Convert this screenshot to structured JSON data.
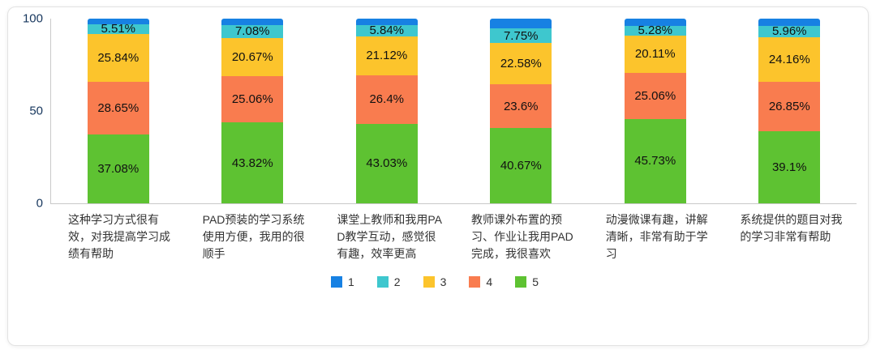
{
  "chart_data": {
    "type": "bar",
    "stacked": true,
    "percent": true,
    "title": "",
    "xlabel": "",
    "ylabel": "",
    "ylim": [
      0,
      100
    ],
    "grid": false,
    "legend_position": "bottom",
    "yticks": [
      {
        "label": "100",
        "value": 100
      },
      {
        "label": "50",
        "value": 50
      },
      {
        "label": "0",
        "value": 0
      }
    ],
    "categories": [
      "这种学习方式很有效，对我提高学习成绩有帮助",
      "PAD预装的学习系统使用方便，我用的很顺手",
      "课堂上教师和我用PAD教学互动，感觉很有趣，效率更高",
      "教师课外布置的预习、作业让我用PAD完成，我很喜欢",
      "动漫微课有趣，讲解清晰，非常有助于学习",
      "系统提供的题目对我的学习非常有帮助"
    ],
    "series": [
      {
        "name": "1",
        "color": "#1781e3",
        "values": [
          2.92,
          3.37,
          3.61,
          5.4,
          3.82,
          3.93
        ],
        "labels": [
          "",
          "",
          "",
          "",
          "",
          ""
        ]
      },
      {
        "name": "2",
        "color": "#3ec7ce",
        "values": [
          5.51,
          7.08,
          5.84,
          7.75,
          5.28,
          5.96
        ],
        "labels": [
          "5.51%",
          "7.08%",
          "5.84%",
          "7.75%",
          "5.28%",
          "5.96%"
        ]
      },
      {
        "name": "3",
        "color": "#fcc42c",
        "values": [
          25.84,
          20.67,
          21.12,
          22.58,
          20.11,
          24.16
        ],
        "labels": [
          "25.84%",
          "20.67%",
          "21.12%",
          "22.58%",
          "20.11%",
          "24.16%"
        ]
      },
      {
        "name": "4",
        "color": "#f97c4f",
        "values": [
          28.65,
          25.06,
          26.4,
          23.6,
          25.06,
          26.85
        ],
        "labels": [
          "28.65%",
          "25.06%",
          "26.4%",
          "23.6%",
          "25.06%",
          "26.85%"
        ]
      },
      {
        "name": "5",
        "color": "#5ec232",
        "values": [
          37.08,
          43.82,
          43.03,
          40.67,
          45.73,
          39.1
        ],
        "labels": [
          "37.08%",
          "43.82%",
          "43.03%",
          "40.67%",
          "45.73%",
          "39.1%"
        ]
      }
    ]
  }
}
